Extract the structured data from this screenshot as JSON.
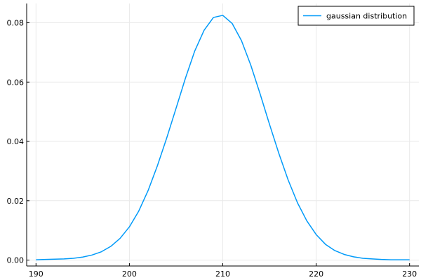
{
  "chart_data": {
    "type": "line",
    "title": "",
    "xlabel": "",
    "ylabel": "",
    "xlim": [
      189,
      231
    ],
    "ylim": [
      -0.002,
      0.0865
    ],
    "xticks": [
      190,
      200,
      210,
      220,
      230
    ],
    "xtick_labels": [
      "190",
      "200",
      "210",
      "220",
      "230"
    ],
    "yticks": [
      0.0,
      0.02,
      0.04,
      0.06,
      0.08
    ],
    "ytick_labels": [
      "0.00",
      "0.02",
      "0.04",
      "0.06",
      "0.08"
    ],
    "grid": true,
    "legend_position": "top-right",
    "series": [
      {
        "name": "gaussian distribution",
        "color": "#009af9",
        "x": [
          190,
          191,
          192,
          193,
          194,
          195,
          196,
          197,
          198,
          199,
          200,
          201,
          202,
          203,
          204,
          205,
          206,
          207,
          208,
          209,
          210,
          211,
          212,
          213,
          214,
          215,
          216,
          217,
          218,
          219,
          220,
          221,
          222,
          223,
          224,
          225,
          226,
          227,
          228,
          229,
          230
        ],
        "y": [
          0.0001,
          0.0002,
          0.0003,
          0.0004,
          0.0006,
          0.001,
          0.0017,
          0.0028,
          0.0046,
          0.0073,
          0.0112,
          0.0165,
          0.0234,
          0.0318,
          0.0412,
          0.0512,
          0.0613,
          0.0705,
          0.0775,
          0.0818,
          0.0825,
          0.0798,
          0.074,
          0.0657,
          0.056,
          0.0458,
          0.036,
          0.027,
          0.0193,
          0.0132,
          0.0086,
          0.0053,
          0.0032,
          0.0019,
          0.0011,
          0.0006,
          0.0004,
          0.0002,
          0.0001,
          0.0001,
          0.0001
        ]
      }
    ]
  }
}
